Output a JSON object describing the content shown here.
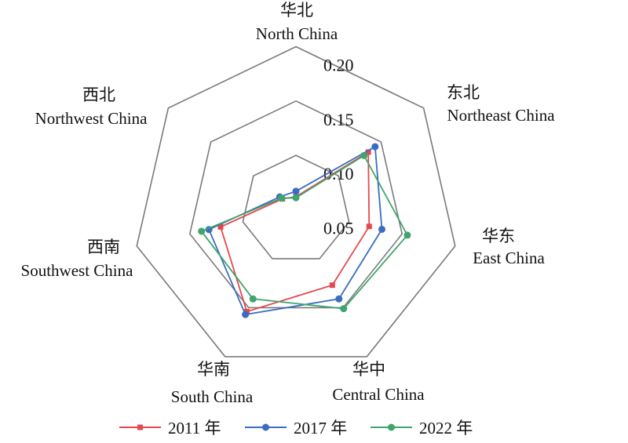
{
  "chart_data": {
    "type": "radar",
    "axes": [
      {
        "zh": "华北",
        "en": "North China"
      },
      {
        "zh": "东北",
        "en": "Northeast China"
      },
      {
        "zh": "华东",
        "en": "East China"
      },
      {
        "zh": "华中",
        "en": "Central China"
      },
      {
        "zh": "华南",
        "en": "South China"
      },
      {
        "zh": "西南",
        "en": "Southwest China"
      },
      {
        "zh": "西北",
        "en": "Northwest China"
      }
    ],
    "ticks": [
      "0.05",
      "0.10",
      "0.15",
      "0.20"
    ],
    "tick_values": [
      0.05,
      0.1,
      0.15,
      0.2
    ],
    "range": [
      0.05,
      0.2
    ],
    "grid": true,
    "legend_position": "bottom",
    "series": [
      {
        "name": "2011 年",
        "color": "#E5484D",
        "marker": "square",
        "values": [
          0.062,
          0.135,
          0.119,
          0.127,
          0.154,
          0.121,
          0.066
        ]
      },
      {
        "name": "2017 年",
        "color": "#3A6CC0",
        "marker": "circle",
        "values": [
          0.067,
          0.143,
          0.131,
          0.141,
          0.157,
          0.132,
          0.069
        ]
      },
      {
        "name": "2022 年",
        "color": "#3FA56C",
        "marker": "circle",
        "values": [
          0.061,
          0.13,
          0.155,
          0.151,
          0.141,
          0.139,
          0.067
        ]
      }
    ]
  }
}
